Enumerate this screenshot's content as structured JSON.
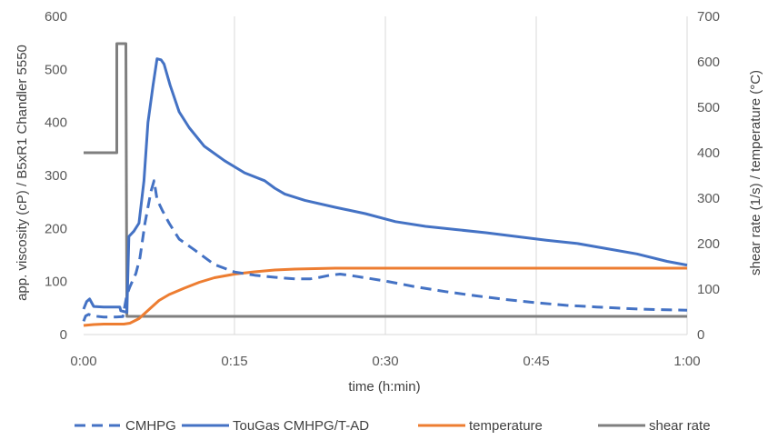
{
  "chart_data": {
    "type": "line",
    "title": "",
    "xlabel": "time (h:min)",
    "ylabel_left": "app. viscosity (cP) / B5xR1 Chandler 5550",
    "ylabel_right": "shear rate (1/s) / temperature (°C)",
    "x_unit": "minutes",
    "xlim": [
      0,
      60
    ],
    "x_ticks": [
      {
        "value": 0,
        "label": "0:00"
      },
      {
        "value": 15,
        "label": "0:15"
      },
      {
        "value": 30,
        "label": "0:30"
      },
      {
        "value": 45,
        "label": "0:45"
      },
      {
        "value": 60,
        "label": "1:00"
      }
    ],
    "ylim_left": [
      0,
      600
    ],
    "y_ticks_left": [
      "0",
      "100",
      "200",
      "300",
      "400",
      "500",
      "600"
    ],
    "ylim_right": [
      0,
      700
    ],
    "y_ticks_right": [
      "0",
      "100",
      "200",
      "300",
      "400",
      "500",
      "600",
      "700"
    ],
    "grid": "vertical",
    "legend_position": "bottom",
    "series": [
      {
        "name": "CMHPG",
        "axis": "left",
        "color": "#4472C4",
        "dash": "dashed",
        "points": [
          [
            0,
            25
          ],
          [
            0.2,
            35
          ],
          [
            0.5,
            38
          ],
          [
            1,
            35
          ],
          [
            2,
            33
          ],
          [
            3,
            33
          ],
          [
            3.9,
            34
          ],
          [
            4.3,
            75
          ],
          [
            4.6,
            90
          ],
          [
            5.2,
            115
          ],
          [
            5.6,
            145
          ],
          [
            6.1,
            210
          ],
          [
            6.7,
            270
          ],
          [
            7.0,
            290
          ],
          [
            7.3,
            255
          ],
          [
            7.8,
            235
          ],
          [
            8.5,
            210
          ],
          [
            9.5,
            180
          ],
          [
            11,
            160
          ],
          [
            13,
            132
          ],
          [
            15,
            118
          ],
          [
            17,
            112
          ],
          [
            19,
            108
          ],
          [
            21,
            105
          ],
          [
            22.5,
            105
          ],
          [
            23.5,
            108
          ],
          [
            24.5,
            112
          ],
          [
            25.5,
            114
          ],
          [
            27,
            110
          ],
          [
            30,
            101
          ],
          [
            33,
            90
          ],
          [
            36,
            81
          ],
          [
            39,
            73
          ],
          [
            42,
            66
          ],
          [
            45,
            60
          ],
          [
            48,
            55
          ],
          [
            51,
            52
          ],
          [
            54,
            49
          ],
          [
            57,
            47
          ],
          [
            60,
            46
          ]
        ]
      },
      {
        "name": "TouGas CMHPG/T-AD",
        "axis": "left",
        "color": "#4472C4",
        "dash": "solid",
        "points": [
          [
            0,
            48
          ],
          [
            0.3,
            62
          ],
          [
            0.6,
            67
          ],
          [
            1,
            53
          ],
          [
            2,
            52
          ],
          [
            3,
            52
          ],
          [
            3.6,
            52
          ],
          [
            3.7,
            45
          ],
          [
            4.3,
            42
          ],
          [
            4.5,
            185
          ],
          [
            5,
            195
          ],
          [
            5.5,
            210
          ],
          [
            6,
            290
          ],
          [
            6.4,
            400
          ],
          [
            6.9,
            470
          ],
          [
            7.3,
            520
          ],
          [
            7.7,
            518
          ],
          [
            8,
            510
          ],
          [
            8.6,
            470
          ],
          [
            9.5,
            420
          ],
          [
            10.5,
            390
          ],
          [
            12,
            355
          ],
          [
            14,
            328
          ],
          [
            16,
            305
          ],
          [
            18,
            290
          ],
          [
            19,
            276
          ],
          [
            20,
            265
          ],
          [
            22,
            253
          ],
          [
            25,
            240
          ],
          [
            28,
            228
          ],
          [
            31,
            213
          ],
          [
            34,
            204
          ],
          [
            37,
            198
          ],
          [
            40,
            192
          ],
          [
            43,
            185
          ],
          [
            46,
            178
          ],
          [
            49,
            172
          ],
          [
            52,
            162
          ],
          [
            55,
            152
          ],
          [
            58,
            138
          ],
          [
            60,
            131
          ]
        ]
      },
      {
        "name": "temperature",
        "axis": "right",
        "color": "#ED7D31",
        "dash": "solid",
        "points": [
          [
            0,
            20
          ],
          [
            1,
            22
          ],
          [
            2,
            23
          ],
          [
            3,
            23
          ],
          [
            4,
            23
          ],
          [
            4.6,
            25
          ],
          [
            5.5,
            35
          ],
          [
            6.5,
            55
          ],
          [
            7.5,
            75
          ],
          [
            8.5,
            88
          ],
          [
            10,
            102
          ],
          [
            11.5,
            115
          ],
          [
            13,
            125
          ],
          [
            15,
            133
          ],
          [
            17,
            138
          ],
          [
            19,
            142
          ],
          [
            21,
            144
          ],
          [
            23,
            145
          ],
          [
            25,
            146
          ],
          [
            30,
            146
          ],
          [
            40,
            146
          ],
          [
            50,
            146
          ],
          [
            60,
            146
          ]
        ]
      },
      {
        "name": "shear rate",
        "axis": "right",
        "color": "#7F7F7F",
        "dash": "solid",
        "points": [
          [
            0,
            400
          ],
          [
            3.3,
            400
          ],
          [
            3.3,
            640
          ],
          [
            4.2,
            640
          ],
          [
            4.3,
            40
          ],
          [
            60,
            40
          ]
        ]
      }
    ]
  }
}
